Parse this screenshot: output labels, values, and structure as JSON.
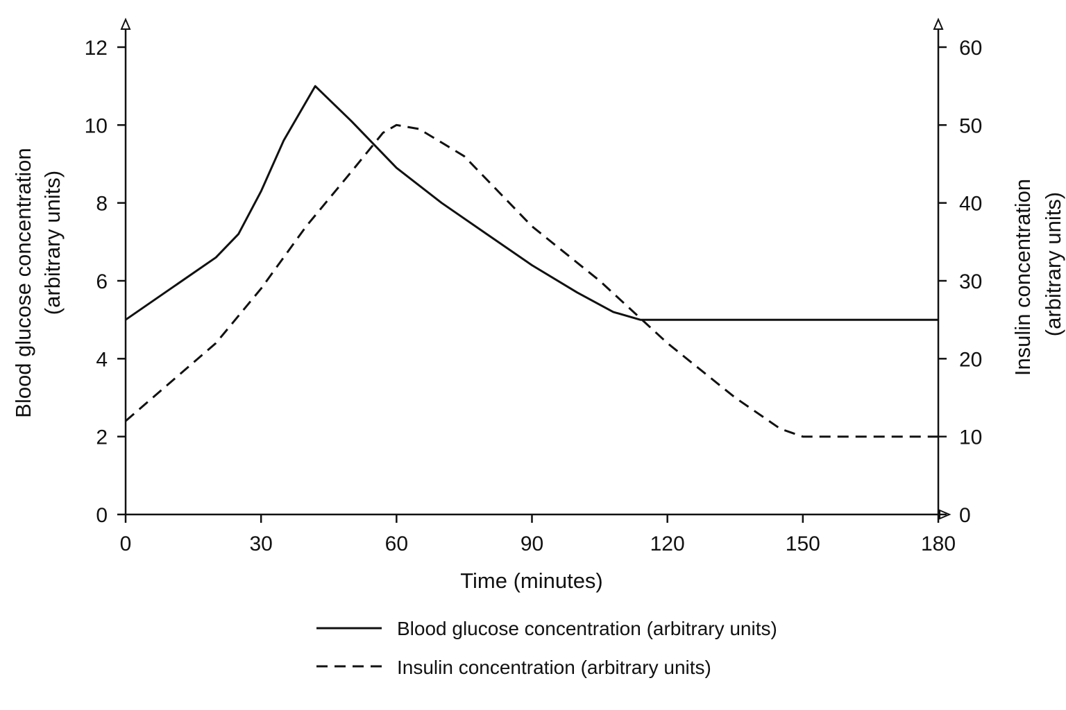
{
  "chart_data": {
    "type": "line",
    "xlabel": "Time (minutes)",
    "ylabel_left": [
      "Blood glucose concentration",
      "(arbitrary units)"
    ],
    "ylabel_right": [
      "Insulin concentration",
      "(arbitrary units)"
    ],
    "xlim": [
      0,
      180
    ],
    "ylim_left": [
      0,
      12
    ],
    "ylim_right": [
      0,
      60
    ],
    "x_ticks": [
      "0",
      "30",
      "60",
      "90",
      "120",
      "150",
      "180"
    ],
    "y_ticks_left": [
      "0",
      "2",
      "4",
      "6",
      "8",
      "10",
      "12"
    ],
    "y_ticks_right": [
      "0",
      "10",
      "20",
      "30",
      "40",
      "50",
      "60"
    ],
    "grid": false,
    "legend_position": "bottom-center",
    "series": [
      {
        "name": "Blood glucose concentration (arbitrary units)",
        "axis": "left",
        "style": "solid",
        "color": "#111111",
        "x": [
          0,
          10,
          20,
          25,
          30,
          35,
          42,
          50,
          60,
          70,
          80,
          90,
          100,
          108,
          114,
          120,
          150,
          180
        ],
        "y": [
          5.0,
          5.8,
          6.6,
          7.2,
          8.3,
          9.6,
          11.0,
          10.1,
          8.9,
          8.0,
          7.2,
          6.4,
          5.7,
          5.2,
          5.0,
          5.0,
          5.0,
          5.0
        ]
      },
      {
        "name": "Insulin concentration (arbitrary units)",
        "axis": "right",
        "style": "dashed",
        "color": "#111111",
        "x": [
          0,
          10,
          20,
          30,
          40,
          50,
          57,
          60,
          65,
          75,
          90,
          105,
          120,
          135,
          145,
          150,
          165,
          180
        ],
        "y": [
          12,
          17,
          22,
          29,
          37,
          44,
          49,
          50,
          49.5,
          46,
          37,
          30,
          22,
          15,
          11,
          10,
          10,
          10
        ]
      }
    ]
  }
}
